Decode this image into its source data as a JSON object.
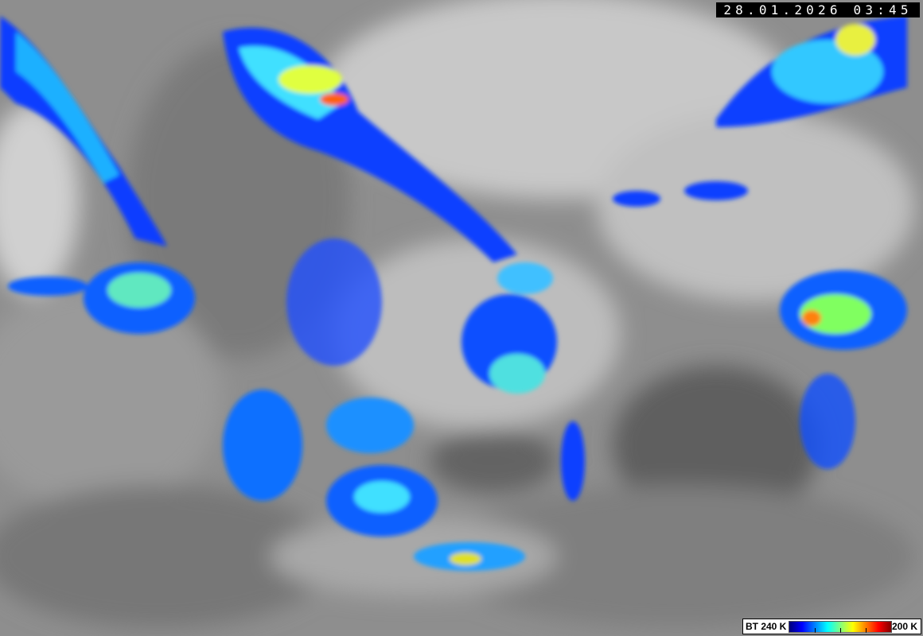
{
  "image": {
    "type": "infrared satellite imagery",
    "timestamp": "28.01.2026 03:45"
  },
  "legend": {
    "min_label": "BT 240 K",
    "max_label": "200 K",
    "colors": [
      "#00007a",
      "#0000ff",
      "#0080ff",
      "#00ffff",
      "#80ff80",
      "#ffff00",
      "#ff8000",
      "#ff0000",
      "#800000"
    ]
  }
}
